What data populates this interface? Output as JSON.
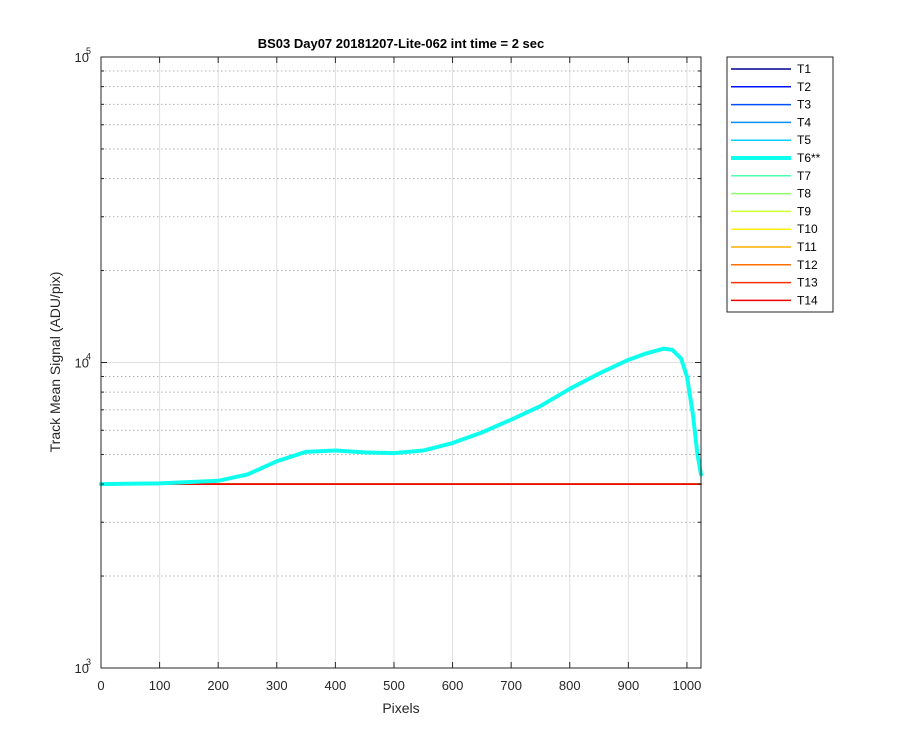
{
  "chart_data": {
    "type": "line",
    "title": "BS03 Day07 20181207-Lite-062 int time = 2 sec",
    "xlabel": "Pixels",
    "ylabel": "Track Mean Signal (ADU/pix)",
    "xlim": [
      0,
      1024
    ],
    "ylim": [
      1000,
      100000
    ],
    "yscale": "log",
    "grid": true,
    "minor_grid": true,
    "xticks": [
      0,
      100,
      200,
      300,
      400,
      500,
      600,
      700,
      800,
      900,
      1000
    ],
    "yticks": [
      {
        "base": "10",
        "exp": "3",
        "value": 1000
      },
      {
        "base": "10",
        "exp": "4",
        "value": 10000
      },
      {
        "base": "10",
        "exp": "5",
        "value": 100000
      }
    ],
    "legend_position": "outside-right-top",
    "series": [
      {
        "name": "T1",
        "color": "#00008f",
        "width": 1.5,
        "x": [
          0,
          1024
        ],
        "y": [
          4000,
          4000
        ]
      },
      {
        "name": "T2",
        "color": "#0010ff",
        "width": 1.5,
        "x": [
          0,
          1024
        ],
        "y": [
          4000,
          4000
        ]
      },
      {
        "name": "T3",
        "color": "#0050ff",
        "width": 1.5,
        "x": [
          0,
          1024
        ],
        "y": [
          4000,
          4000
        ]
      },
      {
        "name": "T4",
        "color": "#0090ff",
        "width": 1.5,
        "x": [
          0,
          1024
        ],
        "y": [
          4000,
          4000
        ]
      },
      {
        "name": "T5",
        "color": "#00cfff",
        "width": 1.5,
        "x": [
          0,
          1024
        ],
        "y": [
          4000,
          4000
        ]
      },
      {
        "name": "T6**",
        "color": "#0fffee",
        "width": 4,
        "x": [
          0,
          100,
          200,
          250,
          300,
          350,
          400,
          450,
          500,
          550,
          600,
          650,
          700,
          750,
          800,
          850,
          900,
          930,
          960,
          975,
          990,
          1000,
          1010,
          1018,
          1024
        ],
        "y": [
          4000,
          4020,
          4100,
          4300,
          4750,
          5100,
          5150,
          5080,
          5050,
          5150,
          5450,
          5900,
          6500,
          7200,
          8200,
          9200,
          10200,
          10700,
          11100,
          11000,
          10300,
          9000,
          6800,
          5000,
          4300
        ]
      },
      {
        "name": "T7",
        "color": "#4fffaf",
        "width": 1.5,
        "x": [
          0,
          1024
        ],
        "y": [
          4000,
          4000
        ]
      },
      {
        "name": "T8",
        "color": "#8fff70",
        "width": 1.5,
        "x": [
          0,
          1024
        ],
        "y": [
          4000,
          4000
        ]
      },
      {
        "name": "T9",
        "color": "#cfff30",
        "width": 1.5,
        "x": [
          0,
          1024
        ],
        "y": [
          4000,
          4000
        ]
      },
      {
        "name": "T10",
        "color": "#ffef00",
        "width": 1.5,
        "x": [
          0,
          1024
        ],
        "y": [
          4000,
          4000
        ]
      },
      {
        "name": "T11",
        "color": "#ffaf00",
        "width": 1.5,
        "x": [
          0,
          1024
        ],
        "y": [
          4000,
          4000
        ]
      },
      {
        "name": "T12",
        "color": "#ff7000",
        "width": 1.5,
        "x": [
          0,
          1024
        ],
        "y": [
          4000,
          4000
        ]
      },
      {
        "name": "T13",
        "color": "#ff3000",
        "width": 1.5,
        "x": [
          0,
          1024
        ],
        "y": [
          4000,
          4000
        ]
      },
      {
        "name": "T14",
        "color": "#ef0000",
        "width": 1.5,
        "x": [
          0,
          1024
        ],
        "y": [
          4000,
          4000
        ]
      }
    ]
  }
}
